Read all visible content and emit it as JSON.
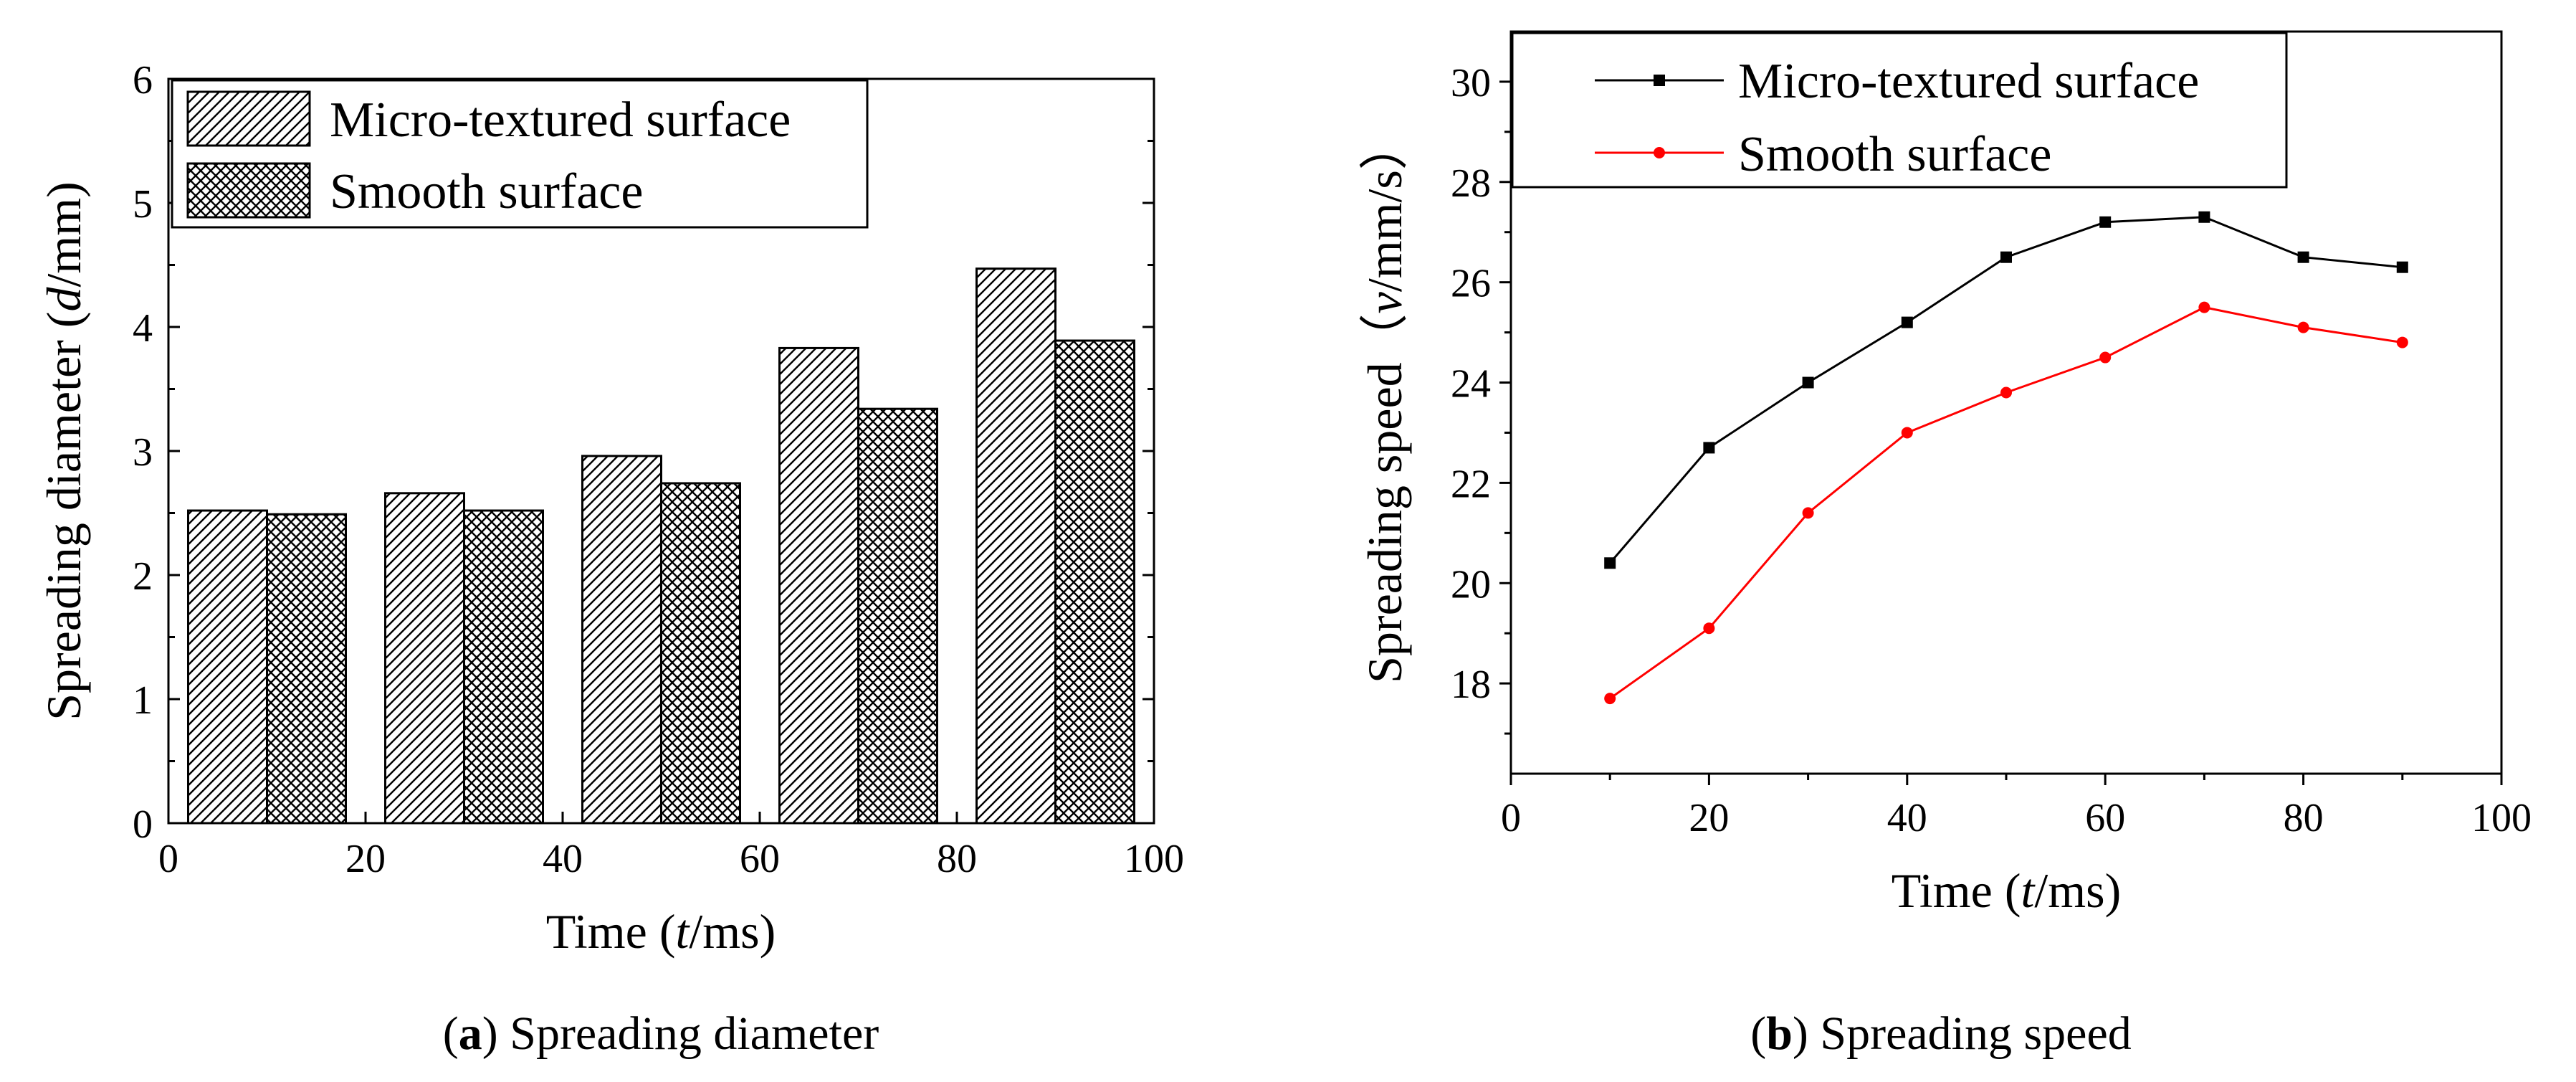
{
  "chart_data": [
    {
      "type": "bar",
      "caption_letter": "a",
      "caption_text": "Spreading diameter",
      "xlabel_pre": "Time (",
      "xlabel_var": "t",
      "xlabel_post": "/ms)",
      "ylabel_pre": "Spreading diameter (",
      "ylabel_var": "d",
      "ylabel_post": "/mm)",
      "xlim": [
        0,
        100
      ],
      "ylim": [
        0,
        6
      ],
      "xticks": [
        "0",
        "20",
        "40",
        "60",
        "80",
        "100"
      ],
      "yticks": [
        "0",
        "1",
        "2",
        "3",
        "4",
        "5",
        "6"
      ],
      "x": [
        10,
        30,
        50,
        70,
        90
      ],
      "series": [
        {
          "name": "Micro-textured surface",
          "pattern": "diagonal-hatch",
          "values": [
            2.52,
            2.66,
            2.96,
            3.83,
            4.47
          ]
        },
        {
          "name": "Smooth surface",
          "pattern": "crosshatch",
          "values": [
            2.49,
            2.52,
            2.74,
            3.34,
            3.89
          ]
        }
      ],
      "legend_position": "top-left",
      "grid": false
    },
    {
      "type": "line",
      "caption_letter": "b",
      "caption_text": "Spreading speed",
      "xlabel_pre": "Time (",
      "xlabel_var": "t",
      "xlabel_post": "/ms)",
      "ylabel_pre": "Spreading speed（",
      "ylabel_var": "v",
      "ylabel_post": "/mm/s）",
      "xlim": [
        0,
        100
      ],
      "ylim": [
        16.2,
        31
      ],
      "xticks": [
        "0",
        "20",
        "40",
        "60",
        "80",
        "100"
      ],
      "yticks": [
        "18",
        "20",
        "22",
        "24",
        "26",
        "28",
        "30"
      ],
      "x": [
        10,
        20,
        30,
        40,
        50,
        60,
        70,
        80,
        90
      ],
      "series": [
        {
          "name": "Micro-textured surface",
          "color": "#000000",
          "marker": "square",
          "values": [
            20.4,
            22.7,
            24.0,
            25.2,
            26.5,
            27.2,
            27.3,
            26.5,
            26.3
          ]
        },
        {
          "name": "Smooth surface",
          "color": "#ff0000",
          "marker": "circle",
          "values": [
            17.7,
            19.1,
            21.4,
            23.0,
            23.8,
            24.5,
            25.5,
            25.1,
            24.8
          ]
        }
      ],
      "legend_position": "top-left",
      "grid": false
    }
  ]
}
